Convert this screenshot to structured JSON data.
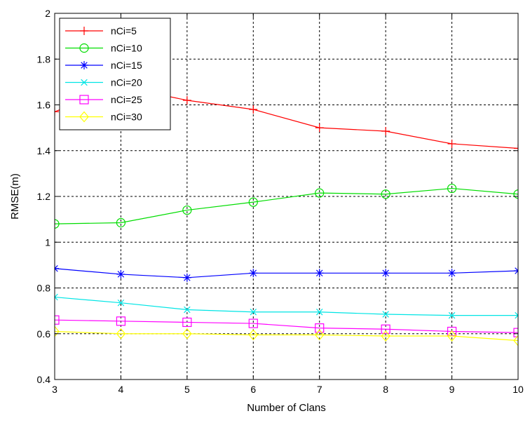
{
  "chart_data": {
    "type": "line",
    "title": "",
    "xlabel": "Number of Clans",
    "ylabel": "RMSE(m)",
    "x": [
      3,
      4,
      5,
      6,
      7,
      8,
      9,
      10
    ],
    "xlim": [
      3,
      10
    ],
    "ylim": [
      0.4,
      2.0
    ],
    "xticks": [
      "3",
      "4",
      "5",
      "6",
      "7",
      "8",
      "9",
      "10"
    ],
    "yticks": [
      "0.4",
      "0.6",
      "0.8",
      "1",
      "1.2",
      "1.4",
      "1.6",
      "1.8",
      "2"
    ],
    "grid": true,
    "legend_position": "top-left",
    "series": [
      {
        "name": "nCi=5",
        "color": "#ff0000",
        "marker": "plus",
        "values": [
          1.57,
          1.68,
          1.62,
          1.58,
          1.5,
          1.485,
          1.43,
          1.41
        ]
      },
      {
        "name": "nCi=10",
        "color": "#00dd00",
        "marker": "circle",
        "values": [
          1.08,
          1.085,
          1.14,
          1.175,
          1.215,
          1.21,
          1.235,
          1.21
        ]
      },
      {
        "name": "nCi=15",
        "color": "#0000ff",
        "marker": "asterisk",
        "values": [
          0.885,
          0.86,
          0.845,
          0.865,
          0.865,
          0.865,
          0.865,
          0.875
        ]
      },
      {
        "name": "nCi=20",
        "color": "#00e5e5",
        "marker": "x",
        "values": [
          0.76,
          0.735,
          0.705,
          0.695,
          0.695,
          0.685,
          0.68,
          0.68
        ]
      },
      {
        "name": "nCi=25",
        "color": "#ff00ff",
        "marker": "square",
        "values": [
          0.66,
          0.655,
          0.65,
          0.645,
          0.625,
          0.62,
          0.61,
          0.605
        ]
      },
      {
        "name": "nCi=30",
        "color": "#ffff00",
        "marker": "diamond",
        "values": [
          0.61,
          0.6,
          0.6,
          0.595,
          0.595,
          0.59,
          0.59,
          0.57
        ]
      }
    ]
  }
}
